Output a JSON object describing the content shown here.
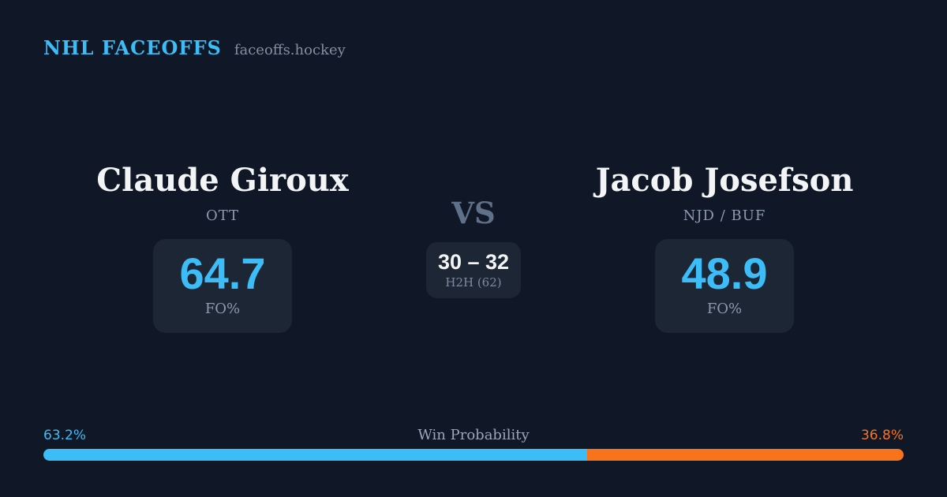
{
  "header": {
    "brand": "NHL FACEOFFS",
    "domain": "faceoffs.hockey"
  },
  "players": {
    "left": {
      "name": "Claude Giroux",
      "team": "OTT",
      "stat_value": "64.7",
      "stat_label": "FO%"
    },
    "right": {
      "name": "Jacob Josefson",
      "team": "NJD / BUF",
      "stat_value": "48.9",
      "stat_label": "FO%"
    }
  },
  "matchup": {
    "vs_label": "VS",
    "h2h_score": "30 – 32",
    "h2h_label": "H2H (62)"
  },
  "win_probability": {
    "title": "Win Probability",
    "left_pct": 63.2,
    "right_pct": 36.8,
    "left_pct_label": "63.2%",
    "right_pct_label": "36.8%"
  },
  "colors": {
    "background": "#101726",
    "card": "#1d2634",
    "accent_blue": "#3cbdf7",
    "accent_orange": "#f7741d",
    "text_primary": "#f2f4f6",
    "text_muted": "#8c9aae"
  },
  "chart_data": {
    "type": "bar",
    "title": "Win Probability",
    "categories": [
      "Claude Giroux (OTT)",
      "Jacob Josefson (NJD / BUF)"
    ],
    "values": [
      63.2,
      36.8
    ],
    "unit": "%",
    "layout": "single horizontal stacked bar, full width",
    "colors": [
      "#3cbdf7",
      "#f7741d"
    ],
    "related_stats": {
      "faceoff_pct": {
        "Claude Giroux": 64.7,
        "Jacob Josefson": 48.9
      },
      "head_to_head": {
        "left_wins": 30,
        "right_wins": 32,
        "total": 62
      }
    }
  }
}
